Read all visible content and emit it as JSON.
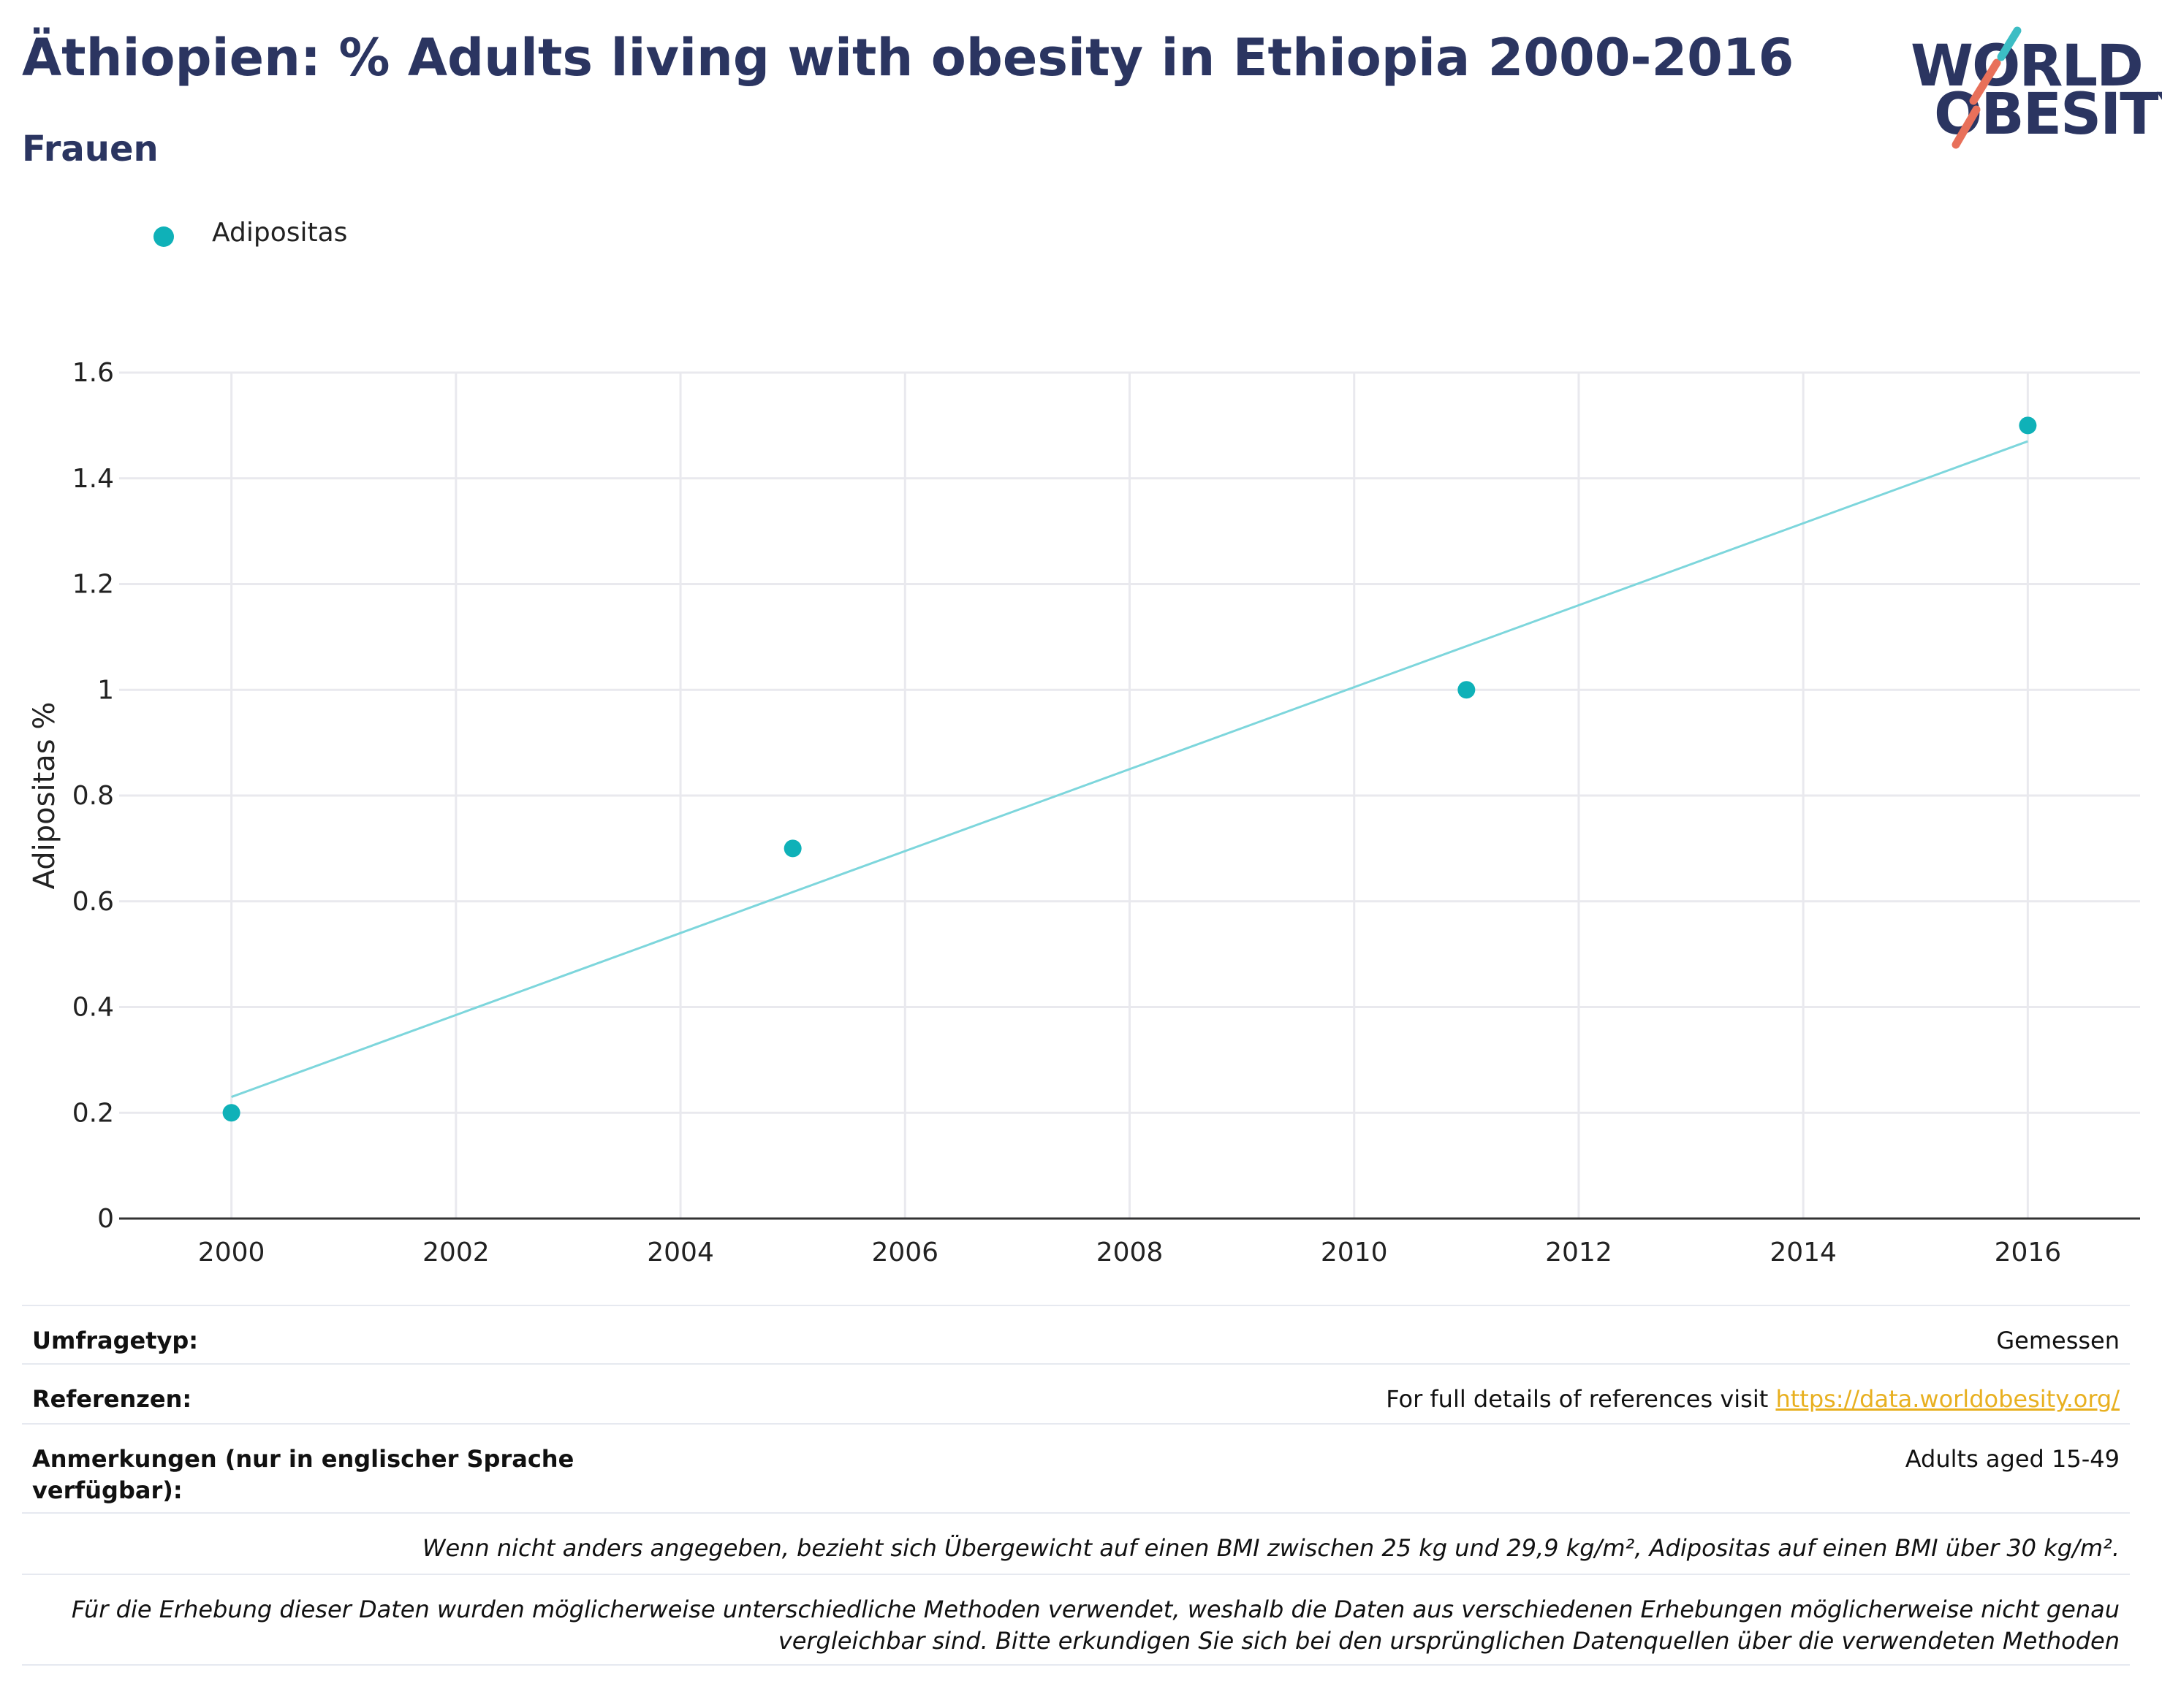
{
  "header": {
    "title": "Äthiopien: % Adults living with obesity in Ethiopia 2000-2016",
    "subtitle": "Frauen"
  },
  "logo": {
    "line1": "WORLD",
    "line2": "OBESITY",
    "colors": {
      "teal": "#3cbdc4",
      "red": "#e8705a",
      "navy": "#2b3561"
    }
  },
  "legend": {
    "label": "Adipositas",
    "color": "#0fb1b8"
  },
  "chart_data": {
    "type": "scatter",
    "title": "Äthiopien: % Adults living with obesity in Ethiopia 2000-2016",
    "ylabel": "Adipositas %",
    "xlabel": "",
    "xlim": [
      1999,
      2017
    ],
    "ylim": [
      0,
      1.6
    ],
    "x_ticks": [
      2000,
      2002,
      2004,
      2006,
      2008,
      2010,
      2012,
      2014,
      2016
    ],
    "y_ticks": [
      0,
      0.2,
      0.4,
      0.6,
      0.8,
      1,
      1.2,
      1.4,
      1.6
    ],
    "grid": true,
    "legend_position": "top-left",
    "series": [
      {
        "name": "Adipositas",
        "color": "#0fb1b8",
        "x": [
          2000,
          2005,
          2011,
          2016
        ],
        "y": [
          0.2,
          0.7,
          1.0,
          1.5
        ]
      }
    ],
    "trendline": {
      "color": "#7dd6dc",
      "x": [
        2000,
        2016
      ],
      "y": [
        0.23,
        1.47
      ]
    }
  },
  "info": {
    "survey_type": {
      "label": "Umfragetyp:",
      "value": "Gemessen"
    },
    "references": {
      "label": "Referenzen:",
      "prefix": "For full details of references visit ",
      "link": "https://data.worldobesity.org/"
    },
    "notes": {
      "label": "Anmerkungen (nur in englischer Sprache verfügbar):",
      "value": "Adults aged 15-49"
    },
    "bmi_note": "Wenn nicht anders angegeben, bezieht sich Übergewicht auf einen BMI zwischen 25 kg und 29,9 kg/m², Adipositas auf einen BMI über 30 kg/m².",
    "methods_note": "Für die Erhebung dieser Daten wurden möglicherweise unterschiedliche Methoden verwendet, weshalb die Daten aus verschiedenen Erhebungen möglicherweise nicht genau vergleichbar sind. Bitte erkundigen Sie sich bei den ursprünglichen Datenquellen über die verwendeten Methoden"
  }
}
